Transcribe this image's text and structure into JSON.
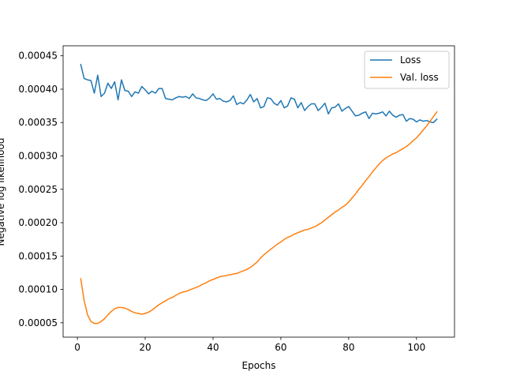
{
  "chart_data": {
    "type": "line",
    "title": "",
    "xlabel": "Epochs",
    "ylabel": "Negative log likelihood",
    "xlim": [
      -4.2,
      111.2
    ],
    "ylim": [
      2.85e-05,
      0.000465
    ],
    "x_ticks": [
      0,
      20,
      40,
      60,
      80,
      100
    ],
    "x_tick_labels": [
      "0",
      "20",
      "40",
      "60",
      "80",
      "100"
    ],
    "y_ticks": [
      5e-05,
      0.0001,
      0.00015,
      0.0002,
      0.00025,
      0.0003,
      0.00035,
      0.0004,
      0.00045
    ],
    "y_tick_labels": [
      "0.00005",
      "0.00010",
      "0.00015",
      "0.00020",
      "0.00025",
      "0.00030",
      "0.00035",
      "0.00040",
      "0.00045"
    ],
    "grid": false,
    "legend_position": "top-right",
    "x": [
      1,
      2,
      3,
      4,
      5,
      6,
      7,
      8,
      9,
      10,
      11,
      12,
      13,
      14,
      15,
      16,
      17,
      18,
      19,
      20,
      21,
      22,
      23,
      24,
      25,
      26,
      27,
      28,
      29,
      30,
      31,
      32,
      33,
      34,
      35,
      36,
      37,
      38,
      39,
      40,
      41,
      42,
      43,
      44,
      45,
      46,
      47,
      48,
      49,
      50,
      51,
      52,
      53,
      54,
      55,
      56,
      57,
      58,
      59,
      60,
      61,
      62,
      63,
      64,
      65,
      66,
      67,
      68,
      69,
      70,
      71,
      72,
      73,
      74,
      75,
      76,
      77,
      78,
      79,
      80,
      81,
      82,
      83,
      84,
      85,
      86,
      87,
      88,
      89,
      90,
      91,
      92,
      93,
      94,
      95,
      96,
      97,
      98,
      99,
      100,
      101,
      102,
      103,
      104,
      105,
      106
    ],
    "series": [
      {
        "name": "Loss",
        "color": "#1f77b4",
        "values": [
          0.000437,
          0.000416,
          0.000414,
          0.000413,
          0.000394,
          0.000421,
          0.000389,
          0.000394,
          0.000409,
          0.000401,
          0.000411,
          0.000384,
          0.000414,
          0.000398,
          0.000397,
          0.000389,
          0.000396,
          0.000394,
          0.000404,
          0.000399,
          0.000393,
          0.000397,
          0.000394,
          0.000401,
          0.000401,
          0.000386,
          0.000385,
          0.000384,
          0.000387,
          0.000389,
          0.000388,
          0.000389,
          0.000386,
          0.000393,
          0.000387,
          0.000386,
          0.000384,
          0.000383,
          0.000387,
          0.000393,
          0.000385,
          0.000386,
          0.000382,
          0.000381,
          0.000383,
          0.00039,
          0.000377,
          0.00038,
          0.000378,
          0.000384,
          0.000392,
          0.000381,
          0.000386,
          0.000372,
          0.000374,
          0.000387,
          0.000386,
          0.000379,
          0.000376,
          0.000383,
          0.000372,
          0.000375,
          0.000387,
          0.000385,
          0.000372,
          0.00038,
          0.000368,
          0.000374,
          0.000378,
          0.000378,
          0.000368,
          0.000373,
          0.000379,
          0.000363,
          0.000372,
          0.000373,
          0.000378,
          0.000367,
          0.000371,
          0.000374,
          0.000367,
          0.00036,
          0.000361,
          0.000364,
          0.000366,
          0.000356,
          0.000364,
          0.000363,
          0.000364,
          0.000366,
          0.00036,
          0.000367,
          0.000361,
          0.000358,
          0.000361,
          0.000362,
          0.000352,
          0.000356,
          0.000355,
          0.000351,
          0.000354,
          0.000352,
          0.000353,
          0.000351,
          0.00035,
          0.000355
        ]
      },
      {
        "name": "Val. loss",
        "color": "#ff7f0e",
        "values": [
          0.000116,
          8.3e-05,
          6.2e-05,
          5.2e-05,
          4.9e-05,
          4.9e-05,
          5.2e-05,
          5.6e-05,
          6.2e-05,
          6.7e-05,
          7.1e-05,
          7.3e-05,
          7.3e-05,
          7.2e-05,
          7e-05,
          6.7e-05,
          6.5e-05,
          6.4e-05,
          6.3e-05,
          6.4e-05,
          6.6e-05,
          6.9e-05,
          7.3e-05,
          7.7e-05,
          8e-05,
          8.3e-05,
          8.6e-05,
          8.8e-05,
          9.1e-05,
          9.4e-05,
          9.6e-05,
          9.7e-05,
          9.9e-05,
          0.000101,
          0.000103,
          0.000105,
          0.000108,
          0.00011,
          0.000113,
          0.000115,
          0.000117,
          0.000119,
          0.00012,
          0.000121,
          0.000122,
          0.000123,
          0.000124,
          0.000126,
          0.000128,
          0.00013,
          0.000133,
          0.000137,
          0.000141,
          0.000147,
          0.000152,
          0.000156,
          0.00016,
          0.000164,
          0.000168,
          0.000171,
          0.000175,
          0.000178,
          0.00018,
          0.000183,
          0.000185,
          0.000187,
          0.000189,
          0.00019,
          0.000192,
          0.000194,
          0.000197,
          0.0002,
          0.000204,
          0.000208,
          0.000212,
          0.000216,
          0.000219,
          0.000223,
          0.000226,
          0.000231,
          0.000237,
          0.000243,
          0.00025,
          0.000256,
          0.000263,
          0.000269,
          0.000276,
          0.000282,
          0.000288,
          0.000293,
          0.000297,
          0.0003,
          0.000303,
          0.000305,
          0.000308,
          0.000311,
          0.000314,
          0.000318,
          0.000323,
          0.000327,
          0.000333,
          0.000339,
          0.000345,
          0.000352,
          0.000359,
          0.000366
        ]
      }
    ]
  }
}
